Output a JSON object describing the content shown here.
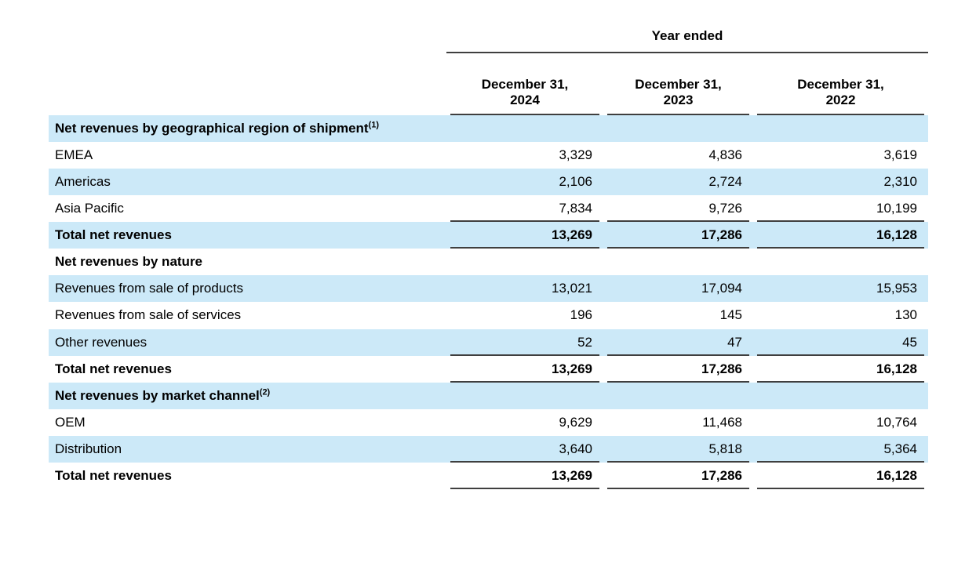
{
  "table": {
    "title_span_header": "Year ended",
    "columns": [
      "December 31,\n2024",
      "December 31,\n2023",
      "December 31,\n2022"
    ],
    "rows": [
      {
        "label": "Net revenues by geographical region of shipment",
        "sup": "(1)",
        "type": "section",
        "values": [
          "",
          "",
          ""
        ]
      },
      {
        "label": "EMEA",
        "values": [
          "3,329",
          "4,836",
          "3,619"
        ]
      },
      {
        "label": "Americas",
        "values": [
          "2,106",
          "2,724",
          "2,310"
        ]
      },
      {
        "label": "Asia Pacific",
        "values": [
          "7,834",
          "9,726",
          "10,199"
        ]
      },
      {
        "label": "Total net revenues",
        "type": "total",
        "values": [
          "13,269",
          "17,286",
          "16,128"
        ]
      },
      {
        "label": "Net revenues by nature",
        "type": "section",
        "values": [
          "",
          "",
          ""
        ]
      },
      {
        "label": "Revenues from sale of products",
        "values": [
          "13,021",
          "17,094",
          "15,953"
        ]
      },
      {
        "label": "Revenues from sale of services",
        "values": [
          "196",
          "145",
          "130"
        ]
      },
      {
        "label": "Other revenues",
        "values": [
          "52",
          "47",
          "45"
        ]
      },
      {
        "label": "Total net revenues",
        "type": "total",
        "values": [
          "13,269",
          "17,286",
          "16,128"
        ]
      },
      {
        "label": "Net revenues by market channel",
        "sup": "(2)",
        "type": "section",
        "values": [
          "",
          "",
          ""
        ]
      },
      {
        "label": "OEM",
        "values": [
          "9,629",
          "11,468",
          "10,764"
        ]
      },
      {
        "label": "Distribution",
        "values": [
          "3,640",
          "5,818",
          "5,364"
        ]
      },
      {
        "label": "Total net revenues",
        "type": "total",
        "values": [
          "13,269",
          "17,286",
          "16,128"
        ]
      }
    ],
    "colors": {
      "row_shade": "#cce9f8",
      "rule": "#3f3f3f",
      "text": "#000000"
    }
  }
}
